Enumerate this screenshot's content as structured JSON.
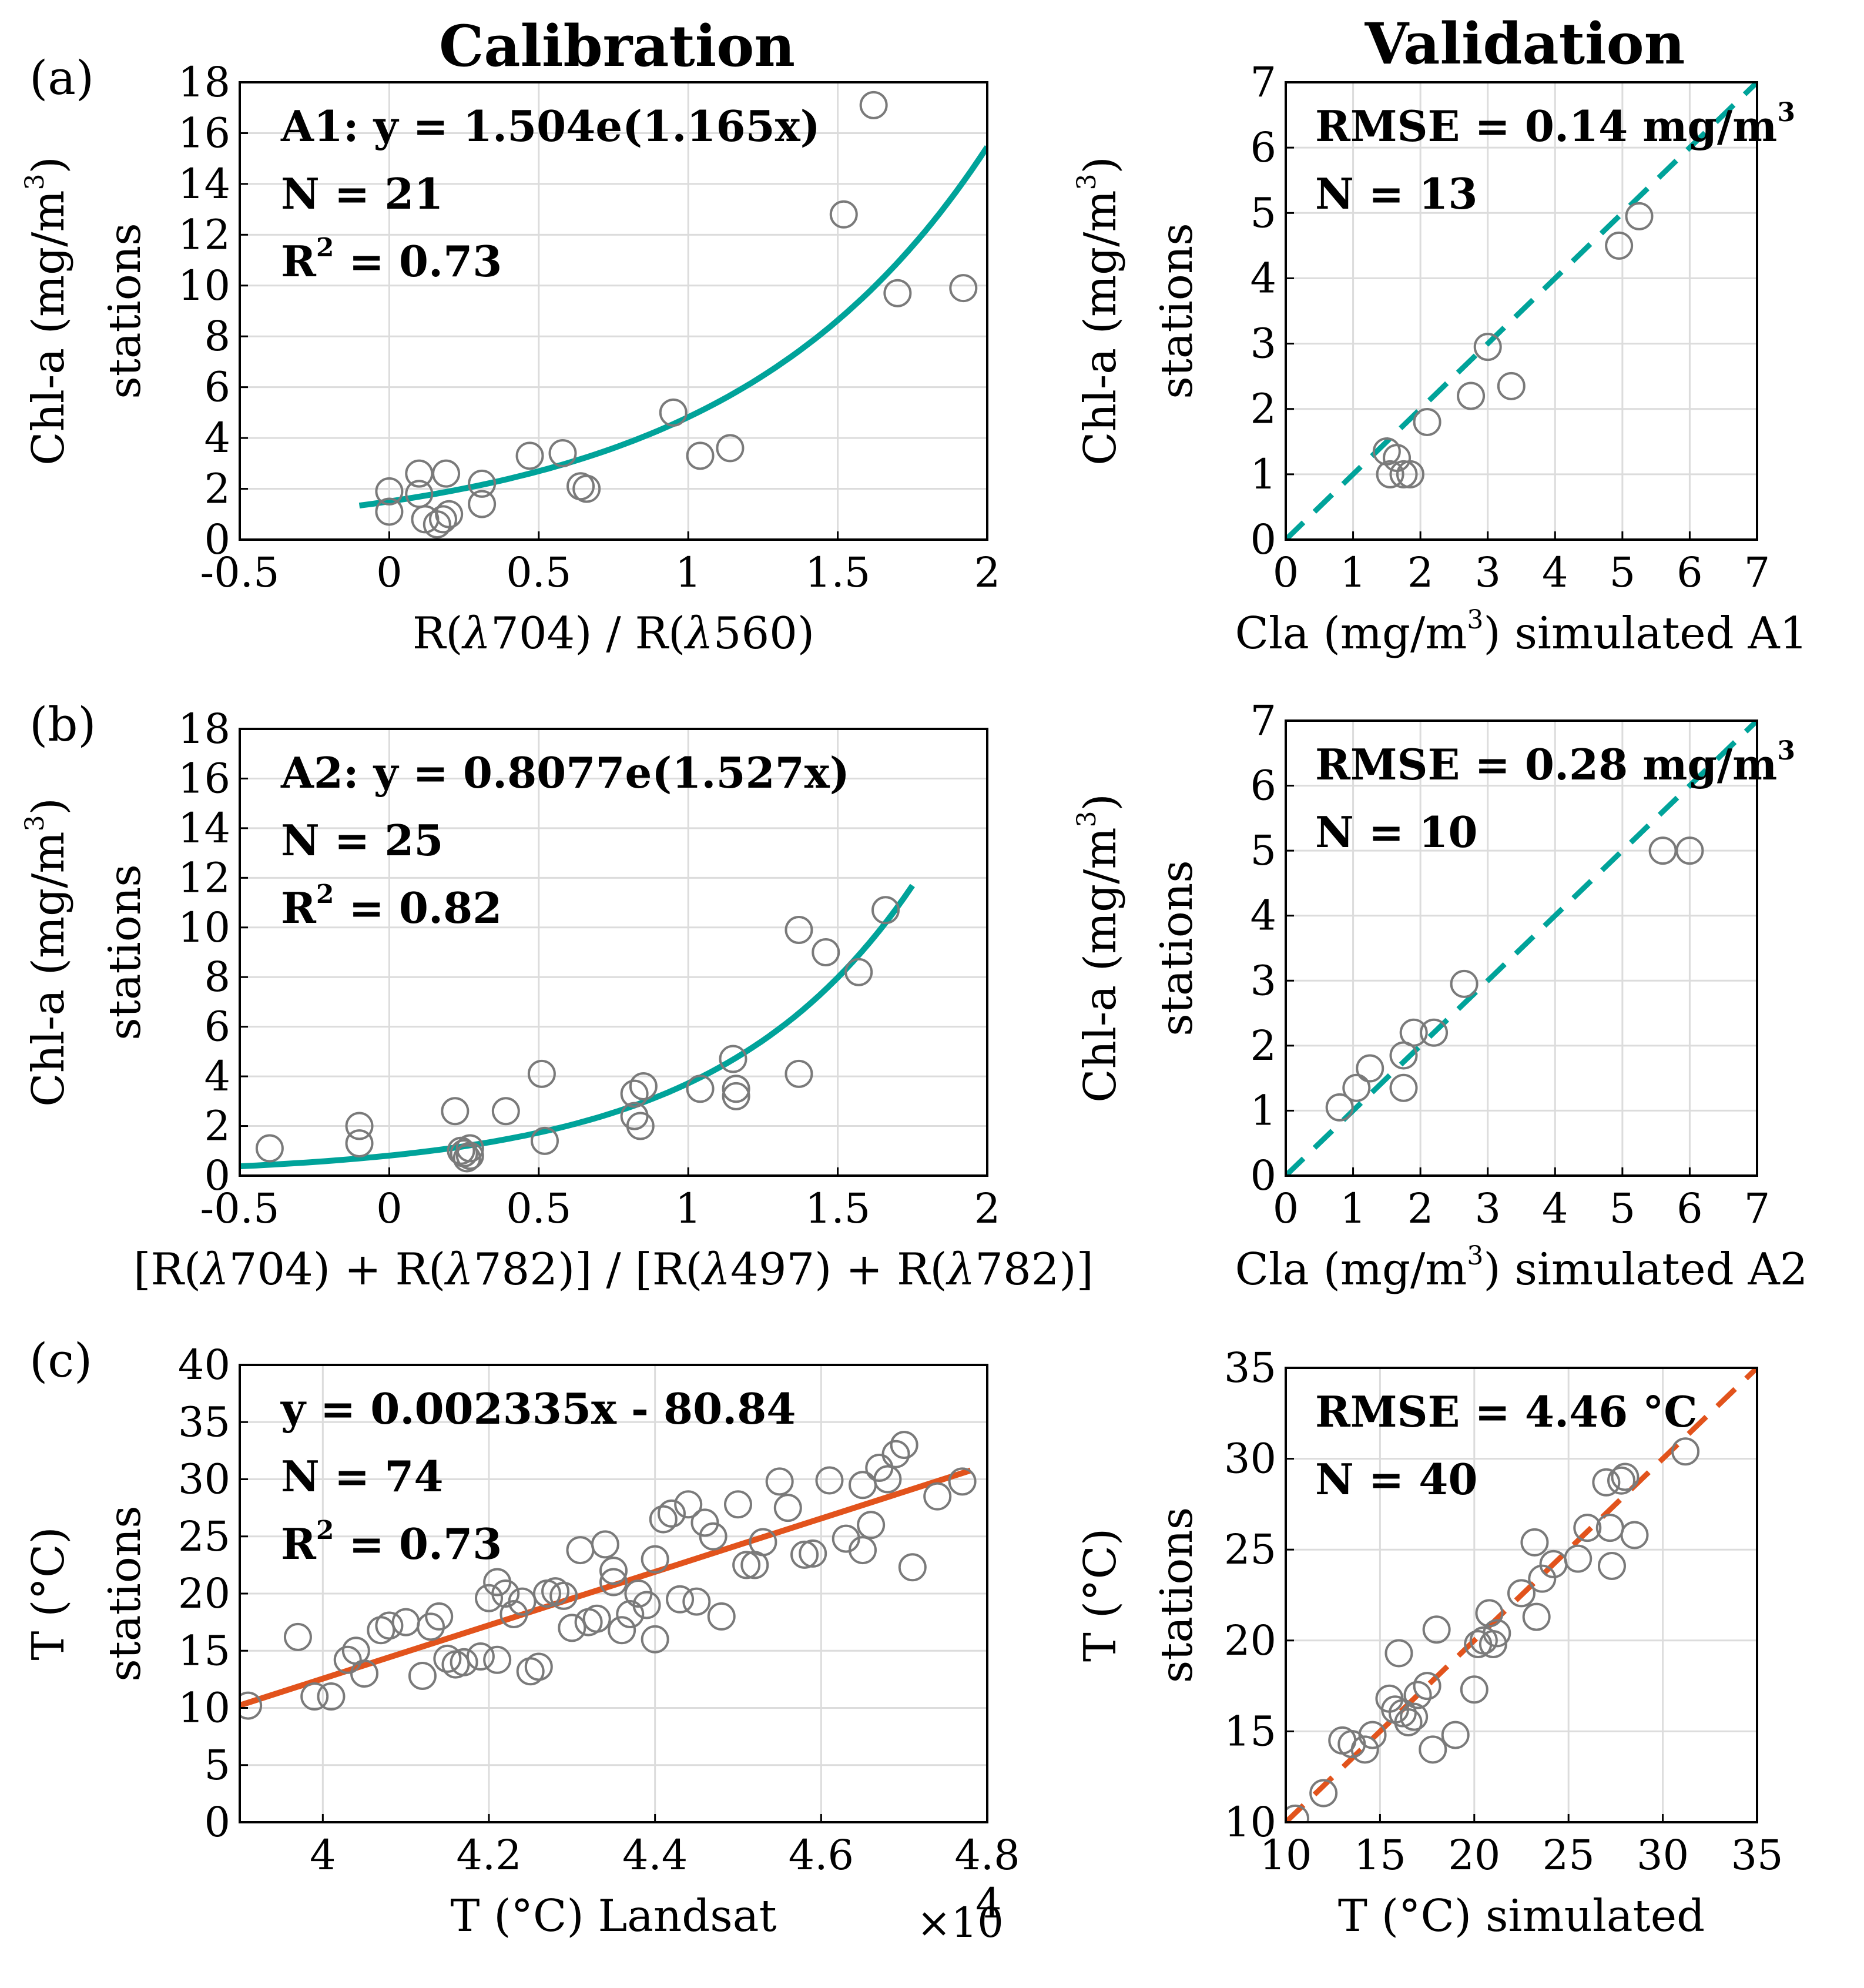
{
  "titles": {
    "left": "Calibration",
    "right": "Validation"
  },
  "colors": {
    "teal": "#00a39a",
    "orange": "#e2531c",
    "marker": "#7a7a7a"
  },
  "chart_data": [
    {
      "type": "scatter",
      "panel_label": "(a)",
      "column": "Calibration",
      "xlabel": "R(λ704) / R(λ560)",
      "ylabel_1": "Chl-a (mg/m³)",
      "ylabel_2": "stations",
      "xlim": [
        -0.5,
        2
      ],
      "ylim": [
        0,
        18
      ],
      "xticks": [
        -0.5,
        0,
        0.5,
        1,
        1.5,
        2
      ],
      "xtick_labels": [
        "-0.5",
        "0",
        "0.5",
        "1",
        "1.5",
        "2"
      ],
      "yticks": [
        0,
        2,
        4,
        6,
        8,
        10,
        12,
        14,
        16,
        18
      ],
      "ytick_labels": [
        "0",
        "2",
        "4",
        "6",
        "8",
        "10",
        "12",
        "14",
        "16",
        "18"
      ],
      "annotations": [
        "A1: y = 1.504e(1.165x)",
        "N = 21",
        "R² = 0.73"
      ],
      "fit": {
        "kind": "exp",
        "a": 1.504,
        "b": 1.165,
        "x_range": [
          -0.1,
          2.0
        ],
        "color": "#00a39a",
        "dashed": false
      },
      "points": [
        [
          0.0,
          1.9
        ],
        [
          0.0,
          1.1
        ],
        [
          0.1,
          2.6
        ],
        [
          0.1,
          1.8
        ],
        [
          0.12,
          0.8
        ],
        [
          0.16,
          0.6
        ],
        [
          0.18,
          0.8
        ],
        [
          0.19,
          2.6
        ],
        [
          0.2,
          1.0
        ],
        [
          0.31,
          2.2
        ],
        [
          0.31,
          1.4
        ],
        [
          0.47,
          3.3
        ],
        [
          0.58,
          3.4
        ],
        [
          0.64,
          2.1
        ],
        [
          0.66,
          2.0
        ],
        [
          0.95,
          5.0
        ],
        [
          1.04,
          3.3
        ],
        [
          1.14,
          3.6
        ],
        [
          1.52,
          12.8
        ],
        [
          1.62,
          17.1
        ],
        [
          1.7,
          9.7
        ],
        [
          1.92,
          9.9
        ]
      ]
    },
    {
      "type": "scatter",
      "panel_label": "",
      "column": "Validation",
      "xlabel": "Cla (mg/m³) simulated A1",
      "ylabel_1": "Chl-a (mg/m³)",
      "ylabel_2": "stations",
      "xlim": [
        0,
        7
      ],
      "ylim": [
        0,
        7
      ],
      "xticks": [
        0,
        1,
        2,
        3,
        4,
        5,
        6,
        7
      ],
      "xtick_labels": [
        "0",
        "1",
        "2",
        "3",
        "4",
        "5",
        "6",
        "7"
      ],
      "yticks": [
        0,
        1,
        2,
        3,
        4,
        5,
        6,
        7
      ],
      "ytick_labels": [
        "0",
        "1",
        "2",
        "3",
        "4",
        "5",
        "6",
        "7"
      ],
      "annotations": [
        "RMSE = 0.14 mg/m³",
        "N = 13"
      ],
      "fit": {
        "kind": "identity",
        "x_range": [
          0,
          7
        ],
        "color": "#00a39a",
        "dashed": true
      },
      "points": [
        [
          1.5,
          1.35
        ],
        [
          1.55,
          1.0
        ],
        [
          1.65,
          1.25
        ],
        [
          1.75,
          1.0
        ],
        [
          1.85,
          1.0
        ],
        [
          2.1,
          1.8
        ],
        [
          2.75,
          2.2
        ],
        [
          3.0,
          2.95
        ],
        [
          3.35,
          2.35
        ],
        [
          4.95,
          4.5
        ],
        [
          5.25,
          4.95
        ]
      ]
    },
    {
      "type": "scatter",
      "panel_label": "(b)",
      "column": "Calibration",
      "xlabel": "[R(λ704) + R(λ782)] / [R(λ497) + R(λ782)]",
      "ylabel_1": "Chl-a (mg/m³)",
      "ylabel_2": "stations",
      "xlim": [
        -0.5,
        2
      ],
      "ylim": [
        0,
        18
      ],
      "xticks": [
        -0.5,
        0,
        0.5,
        1,
        1.5,
        2
      ],
      "xtick_labels": [
        "-0.5",
        "0",
        "0.5",
        "1",
        "1.5",
        "2"
      ],
      "yticks": [
        0,
        2,
        4,
        6,
        8,
        10,
        12,
        14,
        16,
        18
      ],
      "ytick_labels": [
        "0",
        "2",
        "4",
        "6",
        "8",
        "10",
        "12",
        "14",
        "16",
        "18"
      ],
      "annotations": [
        "A2: y = 0.8077e(1.527x)",
        "N = 25",
        "R² = 0.82"
      ],
      "fit": {
        "kind": "exp",
        "a": 0.8077,
        "b": 1.527,
        "x_range": [
          -0.5,
          1.75
        ],
        "color": "#00a39a",
        "dashed": false
      },
      "points": [
        [
          -0.4,
          1.1
        ],
        [
          -0.1,
          2.0
        ],
        [
          -0.1,
          1.3
        ],
        [
          0.22,
          2.6
        ],
        [
          0.24,
          1.0
        ],
        [
          0.25,
          0.9
        ],
        [
          0.26,
          0.7
        ],
        [
          0.27,
          1.1
        ],
        [
          0.27,
          0.8
        ],
        [
          0.39,
          2.6
        ],
        [
          0.51,
          4.1
        ],
        [
          0.52,
          1.4
        ],
        [
          0.82,
          3.3
        ],
        [
          0.82,
          2.4
        ],
        [
          0.84,
          2.0
        ],
        [
          0.85,
          3.6
        ],
        [
          1.04,
          3.5
        ],
        [
          1.15,
          4.7
        ],
        [
          1.16,
          3.5
        ],
        [
          1.16,
          3.2
        ],
        [
          1.37,
          9.9
        ],
        [
          1.37,
          4.1
        ],
        [
          1.46,
          9.0
        ],
        [
          1.57,
          8.2
        ],
        [
          1.66,
          10.7
        ]
      ]
    },
    {
      "type": "scatter",
      "panel_label": "",
      "column": "Validation",
      "xlabel": "Cla (mg/m³) simulated A2",
      "ylabel_1": "Chl-a (mg/m³)",
      "ylabel_2": "stations",
      "xlim": [
        0,
        7
      ],
      "ylim": [
        0,
        7
      ],
      "xticks": [
        0,
        1,
        2,
        3,
        4,
        5,
        6,
        7
      ],
      "xtick_labels": [
        "0",
        "1",
        "2",
        "3",
        "4",
        "5",
        "6",
        "7"
      ],
      "yticks": [
        0,
        1,
        2,
        3,
        4,
        5,
        6,
        7
      ],
      "ytick_labels": [
        "0",
        "1",
        "2",
        "3",
        "4",
        "5",
        "6",
        "7"
      ],
      "annotations": [
        "RMSE = 0.28 mg/m³",
        "N = 10"
      ],
      "fit": {
        "kind": "identity",
        "x_range": [
          0,
          7
        ],
        "color": "#00a39a",
        "dashed": true
      },
      "points": [
        [
          0.8,
          1.05
        ],
        [
          1.05,
          1.35
        ],
        [
          1.25,
          1.65
        ],
        [
          1.75,
          1.35
        ],
        [
          1.75,
          1.85
        ],
        [
          1.9,
          2.2
        ],
        [
          2.2,
          2.2
        ],
        [
          2.65,
          2.95
        ],
        [
          5.6,
          5.0
        ],
        [
          6.0,
          5.0
        ]
      ]
    },
    {
      "type": "scatter",
      "panel_label": "(c)",
      "column": "Calibration",
      "xlabel": "T (°C) Landsat",
      "x_multiplier": "×10",
      "x_multiplier_exp": "4",
      "ylabel_1": "T (°C)",
      "ylabel_2": "stations",
      "xlim": [
        3.9,
        4.8
      ],
      "ylim": [
        0,
        40
      ],
      "xticks": [
        4.0,
        4.2,
        4.4,
        4.6,
        4.8
      ],
      "xtick_labels": [
        "4",
        "4.2",
        "4.4",
        "4.6",
        "4.8"
      ],
      "yticks": [
        0,
        5,
        10,
        15,
        20,
        25,
        30,
        35,
        40
      ],
      "ytick_labels": [
        "0",
        "5",
        "10",
        "15",
        "20",
        "25",
        "30",
        "35",
        "40"
      ],
      "annotations": [
        "y = 0.002335x - 80.84",
        "N = 74",
        "R² = 0.73"
      ],
      "fit": {
        "kind": "linear",
        "m": 23.35,
        "c": -80.84,
        "x_range": [
          3.9,
          4.78
        ],
        "color": "#e2531c",
        "dashed": false
      },
      "points": [
        [
          3.91,
          10.2
        ],
        [
          3.97,
          16.2
        ],
        [
          3.99,
          11.0
        ],
        [
          4.01,
          11.0
        ],
        [
          4.03,
          14.2
        ],
        [
          4.04,
          15.0
        ],
        [
          4.05,
          13.0
        ],
        [
          4.07,
          16.8
        ],
        [
          4.08,
          17.2
        ],
        [
          4.1,
          17.5
        ],
        [
          4.12,
          12.8
        ],
        [
          4.13,
          17.1
        ],
        [
          4.14,
          18.0
        ],
        [
          4.15,
          14.3
        ],
        [
          4.16,
          13.8
        ],
        [
          4.17,
          14.0
        ],
        [
          4.19,
          14.5
        ],
        [
          4.2,
          19.6
        ],
        [
          4.21,
          21.0
        ],
        [
          4.21,
          14.2
        ],
        [
          4.22,
          20.0
        ],
        [
          4.23,
          18.2
        ],
        [
          4.24,
          19.3
        ],
        [
          4.25,
          13.2
        ],
        [
          4.26,
          13.6
        ],
        [
          4.27,
          20.0
        ],
        [
          4.28,
          20.2
        ],
        [
          4.29,
          19.8
        ],
        [
          4.3,
          17.0
        ],
        [
          4.31,
          23.8
        ],
        [
          4.32,
          17.5
        ],
        [
          4.33,
          17.8
        ],
        [
          4.34,
          24.3
        ],
        [
          4.35,
          22.0
        ],
        [
          4.35,
          21.0
        ],
        [
          4.36,
          16.8
        ],
        [
          4.37,
          18.2
        ],
        [
          4.38,
          20.0
        ],
        [
          4.39,
          19.0
        ],
        [
          4.4,
          23.0
        ],
        [
          4.4,
          16.0
        ],
        [
          4.41,
          26.5
        ],
        [
          4.42,
          27.0
        ],
        [
          4.43,
          19.5
        ],
        [
          4.44,
          27.8
        ],
        [
          4.45,
          19.3
        ],
        [
          4.46,
          26.2
        ],
        [
          4.47,
          25.0
        ],
        [
          4.48,
          18.0
        ],
        [
          4.5,
          27.8
        ],
        [
          4.51,
          22.5
        ],
        [
          4.52,
          22.5
        ],
        [
          4.53,
          24.5
        ],
        [
          4.55,
          29.8
        ],
        [
          4.56,
          27.5
        ],
        [
          4.58,
          23.4
        ],
        [
          4.59,
          23.5
        ],
        [
          4.61,
          29.9
        ],
        [
          4.63,
          24.8
        ],
        [
          4.65,
          23.8
        ],
        [
          4.65,
          29.5
        ],
        [
          4.66,
          26.0
        ],
        [
          4.67,
          31.0
        ],
        [
          4.68,
          30.0
        ],
        [
          4.69,
          32.2
        ],
        [
          4.7,
          33.0
        ],
        [
          4.71,
          22.3
        ],
        [
          4.74,
          28.5
        ],
        [
          4.77,
          29.8
        ]
      ]
    },
    {
      "type": "scatter",
      "panel_label": "",
      "column": "Validation",
      "xlabel": "T (°C) simulated",
      "ylabel_1": "T (°C)",
      "ylabel_2": "stations",
      "xlim": [
        10,
        35
      ],
      "ylim": [
        10,
        35
      ],
      "xticks": [
        10,
        15,
        20,
        25,
        30,
        35
      ],
      "xtick_labels": [
        "10",
        "15",
        "20",
        "25",
        "30",
        "35"
      ],
      "yticks": [
        10,
        15,
        20,
        25,
        30,
        35
      ],
      "ytick_labels": [
        "10",
        "15",
        "20",
        "25",
        "30",
        "35"
      ],
      "annotations": [
        "RMSE = 4.46 °C",
        "N = 40"
      ],
      "fit": {
        "kind": "identity",
        "x_range": [
          10,
          35
        ],
        "color": "#e2531c",
        "dashed": true
      },
      "points": [
        [
          10.5,
          10.2
        ],
        [
          12.0,
          11.6
        ],
        [
          13.0,
          14.5
        ],
        [
          13.5,
          14.3
        ],
        [
          14.2,
          14.0
        ],
        [
          14.6,
          14.8
        ],
        [
          15.5,
          16.8
        ],
        [
          15.8,
          16.2
        ],
        [
          16.0,
          19.3
        ],
        [
          16.2,
          16.0
        ],
        [
          16.5,
          15.5
        ],
        [
          16.8,
          15.8
        ],
        [
          17.0,
          17.0
        ],
        [
          17.5,
          17.5
        ],
        [
          17.8,
          14.0
        ],
        [
          18.0,
          20.6
        ],
        [
          19.0,
          14.8
        ],
        [
          20.0,
          17.3
        ],
        [
          20.2,
          19.8
        ],
        [
          20.5,
          20.0
        ],
        [
          20.8,
          21.5
        ],
        [
          21.0,
          19.8
        ],
        [
          21.2,
          20.4
        ],
        [
          22.5,
          22.6
        ],
        [
          23.2,
          25.4
        ],
        [
          23.3,
          21.3
        ],
        [
          23.6,
          23.4
        ],
        [
          24.2,
          24.2
        ],
        [
          25.5,
          24.5
        ],
        [
          26.0,
          26.2
        ],
        [
          27.0,
          28.7
        ],
        [
          27.2,
          26.2
        ],
        [
          27.3,
          24.1
        ],
        [
          27.8,
          28.8
        ],
        [
          28.0,
          29.0
        ],
        [
          28.5,
          25.8
        ],
        [
          31.2,
          30.4
        ]
      ]
    }
  ]
}
